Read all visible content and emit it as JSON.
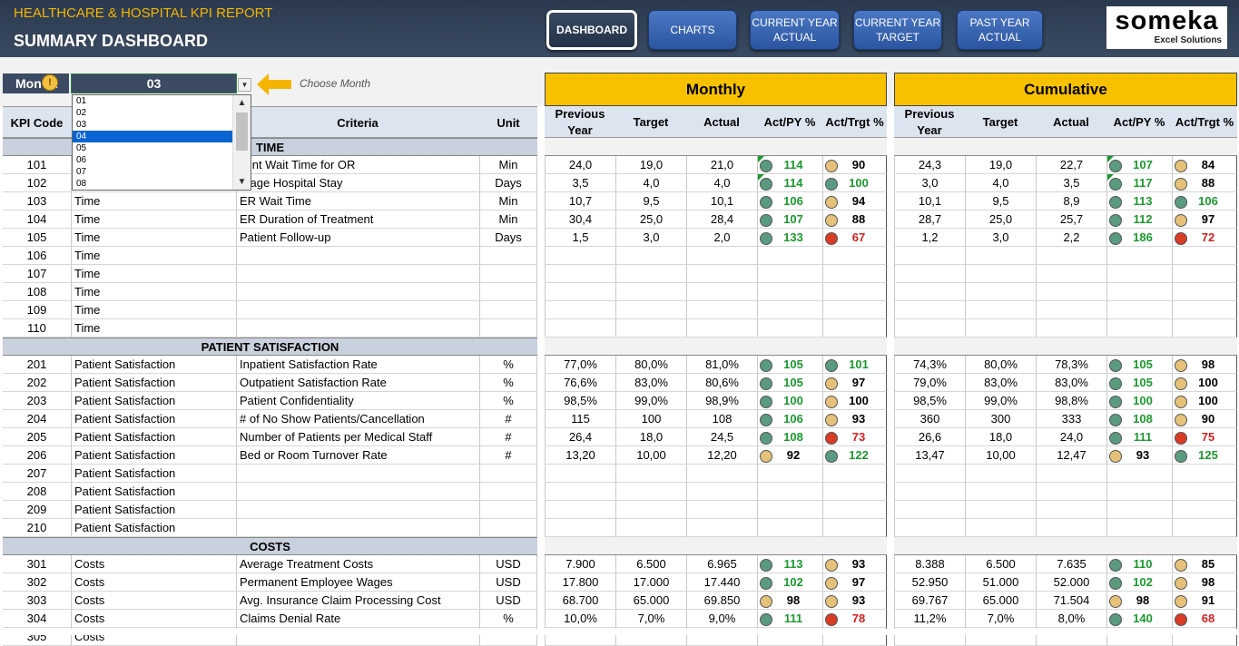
{
  "header": {
    "report_title": "HEALTHCARE & HOSPITAL KPI REPORT",
    "page_title": "SUMMARY DASHBOARD",
    "nav": [
      {
        "label": "DASHBOARD",
        "active": true
      },
      {
        "label": "CHARTS"
      },
      {
        "label": "CURRENT YEAR ACTUAL"
      },
      {
        "label": "CURRENT YEAR TARGET"
      },
      {
        "label": "PAST YEAR ACTUAL"
      }
    ],
    "logo_name": "someka",
    "logo_sub": "Excel Solutions"
  },
  "month": {
    "label": "Mon",
    "separator": ":",
    "value": "03",
    "hint": "Choose Month",
    "options": [
      "01",
      "02",
      "03",
      "04",
      "05",
      "06",
      "07",
      "08"
    ],
    "highlighted": "04"
  },
  "columns": {
    "kpi_code": "KPI Code",
    "category": "",
    "criteria": "Criteria",
    "unit": "Unit",
    "monthly": "Monthly",
    "cumulative": "Cumulative",
    "previous_year": "Previous Year",
    "target": "Target",
    "actual": "Actual",
    "act_py": "Act/PY %",
    "act_trgt": "Act/Trgt %"
  },
  "sections": [
    {
      "title": "TIME",
      "rows": [
        {
          "code": "101",
          "category": "",
          "criteria": "tient Wait Time for OR",
          "unit": "Min",
          "m": [
            "24,0",
            "19,0",
            "21,0",
            "114",
            "g",
            "90",
            "y"
          ],
          "c": [
            "24,3",
            "19,0",
            "22,7",
            "107",
            "g",
            "84",
            "y"
          ],
          "flag": true
        },
        {
          "code": "102",
          "category": "",
          "criteria": "erage Hospital Stay",
          "unit": "Days",
          "m": [
            "3,5",
            "4,0",
            "4,0",
            "114",
            "g",
            "100",
            "g"
          ],
          "c": [
            "3,0",
            "4,0",
            "3,5",
            "117",
            "g",
            "88",
            "y"
          ],
          "flag": true
        },
        {
          "code": "103",
          "category": "Time",
          "criteria": "ER Wait Time",
          "unit": "Min",
          "m": [
            "10,7",
            "9,5",
            "10,1",
            "106",
            "g",
            "94",
            "y"
          ],
          "c": [
            "10,1",
            "9,5",
            "8,9",
            "113",
            "g",
            "106",
            "g"
          ]
        },
        {
          "code": "104",
          "category": "Time",
          "criteria": "ER Duration of Treatment",
          "unit": "Min",
          "m": [
            "30,4",
            "25,0",
            "28,4",
            "107",
            "g",
            "88",
            "y"
          ],
          "c": [
            "28,7",
            "25,0",
            "25,7",
            "112",
            "g",
            "97",
            "y"
          ]
        },
        {
          "code": "105",
          "category": "Time",
          "criteria": "Patient Follow-up",
          "unit": "Days",
          "m": [
            "1,5",
            "3,0",
            "2,0",
            "133",
            "g",
            "67",
            "r"
          ],
          "c": [
            "1,2",
            "3,0",
            "2,2",
            "186",
            "g",
            "72",
            "r"
          ]
        },
        {
          "code": "106",
          "category": "Time",
          "criteria": "",
          "unit": ""
        },
        {
          "code": "107",
          "category": "Time",
          "criteria": "",
          "unit": ""
        },
        {
          "code": "108",
          "category": "Time",
          "criteria": "",
          "unit": ""
        },
        {
          "code": "109",
          "category": "Time",
          "criteria": "",
          "unit": ""
        },
        {
          "code": "110",
          "category": "Time",
          "criteria": "",
          "unit": ""
        }
      ]
    },
    {
      "title": "PATIENT SATISFACTION",
      "rows": [
        {
          "code": "201",
          "category": "Patient Satisfaction",
          "criteria": "Inpatient Satisfaction Rate",
          "unit": "%",
          "m": [
            "77,0%",
            "80,0%",
            "81,0%",
            "105",
            "g",
            "101",
            "g"
          ],
          "c": [
            "74,3%",
            "80,0%",
            "78,3%",
            "105",
            "g",
            "98",
            "y"
          ]
        },
        {
          "code": "202",
          "category": "Patient Satisfaction",
          "criteria": "Outpatient Satisfaction Rate",
          "unit": "%",
          "m": [
            "76,6%",
            "83,0%",
            "80,6%",
            "105",
            "g",
            "97",
            "y"
          ],
          "c": [
            "79,0%",
            "83,0%",
            "83,0%",
            "105",
            "g",
            "100",
            "y"
          ]
        },
        {
          "code": "203",
          "category": "Patient Satisfaction",
          "criteria": "Patient Confidentiality",
          "unit": "%",
          "m": [
            "98,5%",
            "99,0%",
            "98,9%",
            "100",
            "g",
            "100",
            "y"
          ],
          "c": [
            "98,5%",
            "99,0%",
            "98,8%",
            "100",
            "g",
            "100",
            "y"
          ]
        },
        {
          "code": "204",
          "category": "Patient Satisfaction",
          "criteria": "# of No Show Patients/Cancellation",
          "unit": "#",
          "m": [
            "115",
            "100",
            "108",
            "106",
            "g",
            "93",
            "y"
          ],
          "c": [
            "360",
            "300",
            "333",
            "108",
            "g",
            "90",
            "y"
          ]
        },
        {
          "code": "205",
          "category": "Patient Satisfaction",
          "criteria": "Number of Patients per Medical Staff",
          "unit": "#",
          "m": [
            "26,4",
            "18,0",
            "24,5",
            "108",
            "g",
            "73",
            "r"
          ],
          "c": [
            "26,6",
            "18,0",
            "24,0",
            "111",
            "g",
            "75",
            "r"
          ]
        },
        {
          "code": "206",
          "category": "Patient Satisfaction",
          "criteria": "Bed or Room Turnover Rate",
          "unit": "#",
          "m": [
            "13,20",
            "10,00",
            "12,20",
            "92",
            "y",
            "122",
            "g"
          ],
          "c": [
            "13,47",
            "10,00",
            "12,47",
            "93",
            "y",
            "125",
            "g"
          ]
        },
        {
          "code": "207",
          "category": "Patient Satisfaction",
          "criteria": "",
          "unit": ""
        },
        {
          "code": "208",
          "category": "Patient Satisfaction",
          "criteria": "",
          "unit": ""
        },
        {
          "code": "209",
          "category": "Patient Satisfaction",
          "criteria": "",
          "unit": ""
        },
        {
          "code": "210",
          "category": "Patient Satisfaction",
          "criteria": "",
          "unit": ""
        }
      ]
    },
    {
      "title": "COSTS",
      "rows": [
        {
          "code": "301",
          "category": "Costs",
          "criteria": "Average Treatment Costs",
          "unit": "USD",
          "m": [
            "7.900",
            "6.500",
            "6.965",
            "113",
            "g",
            "93",
            "y"
          ],
          "c": [
            "8.388",
            "6.500",
            "7.635",
            "110",
            "g",
            "85",
            "y"
          ]
        },
        {
          "code": "302",
          "category": "Costs",
          "criteria": "Permanent Employee Wages",
          "unit": "USD",
          "m": [
            "17.800",
            "17.000",
            "17.440",
            "102",
            "g",
            "97",
            "y"
          ],
          "c": [
            "52.950",
            "51.000",
            "52.000",
            "102",
            "g",
            "98",
            "y"
          ]
        },
        {
          "code": "303",
          "category": "Costs",
          "criteria": "Avg. Insurance Claim Processing Cost",
          "unit": "USD",
          "m": [
            "68.700",
            "65.000",
            "69.850",
            "98",
            "y",
            "93",
            "y"
          ],
          "c": [
            "69.767",
            "65.000",
            "71.504",
            "98",
            "y",
            "91",
            "y"
          ]
        },
        {
          "code": "304",
          "category": "Costs",
          "criteria": "Claims Denial Rate",
          "unit": "%",
          "m": [
            "10,0%",
            "7,0%",
            "9,0%",
            "111",
            "g",
            "78",
            "r"
          ],
          "c": [
            "11,2%",
            "7,0%",
            "8,0%",
            "140",
            "g",
            "68",
            "r"
          ]
        },
        {
          "code": "305",
          "category": "Costs",
          "criteria": "",
          "unit": ""
        }
      ]
    }
  ],
  "colors": {
    "green_dot": "#5a9b80",
    "yellow_dot": "#e6c17a",
    "red_dot": "#d93c25",
    "band": "#f8c100",
    "header_bg": "#2b3a4e"
  }
}
